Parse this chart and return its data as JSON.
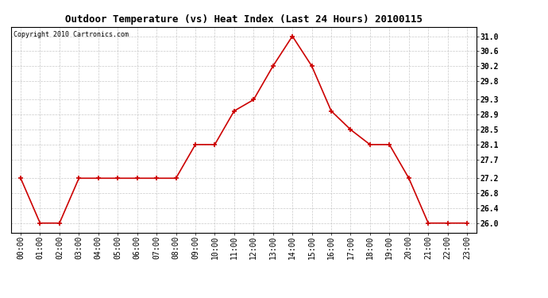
{
  "title": "Outdoor Temperature (vs) Heat Index (Last 24 Hours) 20100115",
  "copyright": "Copyright 2010 Cartronics.com",
  "x_labels": [
    "00:00",
    "01:00",
    "02:00",
    "03:00",
    "04:00",
    "05:00",
    "06:00",
    "07:00",
    "08:00",
    "09:00",
    "10:00",
    "11:00",
    "12:00",
    "13:00",
    "14:00",
    "15:00",
    "16:00",
    "17:00",
    "18:00",
    "19:00",
    "20:00",
    "21:00",
    "22:00",
    "23:00"
  ],
  "y_values": [
    27.2,
    26.0,
    26.0,
    27.2,
    27.2,
    27.2,
    27.2,
    27.2,
    27.2,
    28.1,
    28.1,
    29.0,
    29.3,
    30.2,
    31.0,
    30.2,
    29.0,
    28.5,
    28.1,
    28.1,
    27.2,
    26.0,
    26.0,
    26.0
  ],
  "y_ticks": [
    26.0,
    26.4,
    26.8,
    27.2,
    27.7,
    28.1,
    28.5,
    28.9,
    29.3,
    29.8,
    30.2,
    30.6,
    31.0
  ],
  "ylim": [
    25.75,
    31.25
  ],
  "line_color": "#cc0000",
  "marker": "+",
  "marker_size": 4,
  "bg_color": "#ffffff",
  "grid_color": "#bbbbbb",
  "title_fontsize": 9,
  "copyright_fontsize": 6,
  "tick_fontsize": 7,
  "fig_width": 6.9,
  "fig_height": 3.75,
  "dpi": 100
}
